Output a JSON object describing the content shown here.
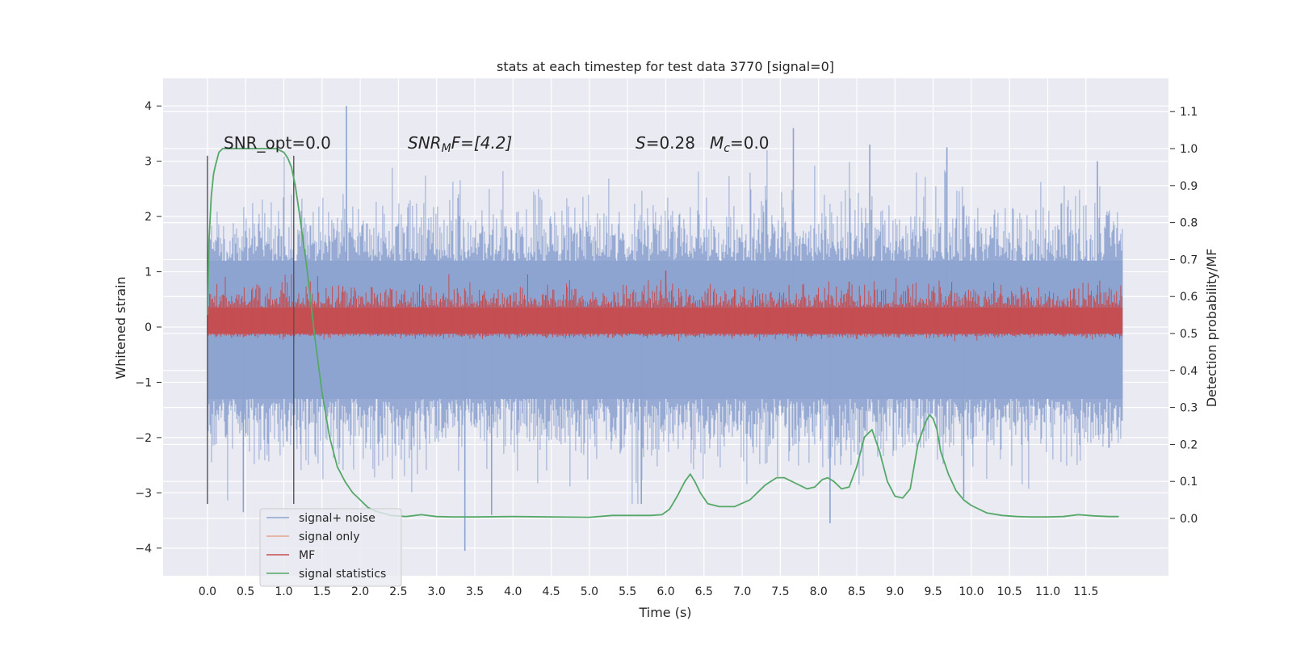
{
  "chart_data": {
    "type": "line",
    "title": "stats at each timestep for test data 3770 [signal=0]",
    "xlabel": "Time (s)",
    "ylabel": "Whitened strain",
    "y2label": "Detection probability/MF",
    "xlim": [
      -0.58,
      12.58
    ],
    "ylim": [
      -4.5,
      4.5
    ],
    "y2lim": [
      -0.155,
      1.19
    ],
    "grid": true,
    "legend_position": "lower-left",
    "x_ticks": [
      "0.0",
      "0.5",
      "1.0",
      "1.5",
      "2.0",
      "2.5",
      "3.0",
      "3.5",
      "4.0",
      "4.5",
      "5.0",
      "5.5",
      "6.0",
      "6.5",
      "7.0",
      "7.5",
      "8.0",
      "8.5",
      "9.0",
      "9.5",
      "10.0",
      "10.5",
      "11.0",
      "11.5"
    ],
    "y_ticks": [
      "4",
      "3",
      "2",
      "1",
      "0",
      "−1",
      "−2",
      "−3",
      "−4"
    ],
    "y2_ticks": [
      "1.1",
      "1.0",
      "0.9",
      "0.8",
      "0.7",
      "0.6",
      "0.5",
      "0.4",
      "0.3",
      "0.2",
      "0.1",
      "0.0"
    ],
    "annotations": {
      "snr_opt": "SNR_opt=0.0",
      "snr_mf": "SNR<sub>M</sub>F=[4.2]",
      "snr_mf_base": "SNR",
      "snr_mf_sub": "M",
      "snr_mf_rest": "F=[4.2]",
      "s_label": "S",
      "s_value": "=0.28",
      "mc_label": "M",
      "mc_sub": "c",
      "mc_value": "=0.0"
    },
    "vertical_lines_x": [
      0.0,
      1.13
    ],
    "vertical_lines_y_range": [
      -3.2,
      3.1
    ],
    "series": [
      {
        "name": "signal+ noise",
        "color": "#8da3cf",
        "description_level": "noise band",
        "core_band": [
          -1.3,
          1.2
        ],
        "peaks": [
          {
            "x": 1.82,
            "y": 4.0
          },
          {
            "x": 7.67,
            "y": 3.6
          },
          {
            "x": 3.37,
            "y": -4.05
          },
          {
            "x": 0.47,
            "y": -3.35
          },
          {
            "x": 3.72,
            "y": -3.4
          },
          {
            "x": 8.15,
            "y": -3.55
          },
          {
            "x": 5.68,
            "y": -3.2
          },
          {
            "x": 9.9,
            "y": -3.1
          },
          {
            "x": 8.67,
            "y": 3.3
          },
          {
            "x": 9.68,
            "y": 3.25
          },
          {
            "x": 11.65,
            "y": 3.0
          }
        ],
        "x_range": [
          0.0,
          11.98
        ]
      },
      {
        "name": "signal only",
        "color": "#e8a487",
        "x_range": [
          0.0,
          11.98
        ],
        "values_constant": 0.0
      },
      {
        "name": "MF",
        "color": "#c44e52",
        "axis": "y2",
        "x_range": [
          0.0,
          11.98
        ],
        "band": [
          0.5,
          0.57
        ],
        "peak_typical": 0.62,
        "peaks": [
          {
            "x": 6.0,
            "y": 0.67
          },
          {
            "x": 8.4,
            "y": 0.64
          }
        ]
      },
      {
        "name": "signal statistics",
        "color": "#55a868",
        "axis": "y2",
        "x": [
          0.0,
          0.02,
          0.05,
          0.08,
          0.1,
          0.15,
          0.2,
          0.3,
          0.4,
          0.5,
          0.6,
          0.7,
          0.8,
          0.9,
          0.95,
          1.0,
          1.05,
          1.1,
          1.15,
          1.2,
          1.3,
          1.4,
          1.5,
          1.6,
          1.7,
          1.8,
          1.9,
          2.0,
          2.1,
          2.2,
          2.4,
          2.6,
          2.8,
          3.0,
          3.2,
          3.5,
          4.0,
          4.5,
          5.0,
          5.3,
          5.5,
          5.8,
          5.95,
          6.05,
          6.15,
          6.25,
          6.32,
          6.38,
          6.45,
          6.55,
          6.7,
          6.9,
          7.1,
          7.3,
          7.45,
          7.55,
          7.7,
          7.85,
          7.95,
          8.05,
          8.12,
          8.2,
          8.3,
          8.4,
          8.5,
          8.6,
          8.7,
          8.8,
          8.9,
          9.0,
          9.1,
          9.2,
          9.3,
          9.4,
          9.45,
          9.5,
          9.55,
          9.6,
          9.7,
          9.8,
          9.9,
          10.0,
          10.2,
          10.4,
          10.6,
          10.8,
          11.0,
          11.2,
          11.4,
          11.6,
          11.8,
          11.93
        ],
        "y": [
          0.55,
          0.75,
          0.87,
          0.93,
          0.95,
          0.99,
          1.0,
          1.0,
          1.0,
          1.0,
          1.0,
          1.0,
          1.0,
          1.0,
          0.995,
          0.99,
          0.975,
          0.95,
          0.9,
          0.83,
          0.68,
          0.5,
          0.34,
          0.22,
          0.14,
          0.1,
          0.07,
          0.05,
          0.03,
          0.02,
          0.008,
          0.005,
          0.01,
          0.005,
          0.004,
          0.004,
          0.005,
          0.004,
          0.003,
          0.008,
          0.008,
          0.008,
          0.01,
          0.025,
          0.06,
          0.1,
          0.12,
          0.1,
          0.07,
          0.04,
          0.032,
          0.032,
          0.05,
          0.09,
          0.11,
          0.11,
          0.095,
          0.08,
          0.085,
          0.105,
          0.11,
          0.1,
          0.08,
          0.085,
          0.14,
          0.22,
          0.24,
          0.18,
          0.1,
          0.06,
          0.055,
          0.08,
          0.2,
          0.26,
          0.28,
          0.27,
          0.24,
          0.18,
          0.12,
          0.075,
          0.05,
          0.035,
          0.015,
          0.008,
          0.005,
          0.004,
          0.004,
          0.005,
          0.01,
          0.007,
          0.005,
          0.005
        ]
      }
    ],
    "legend": [
      "signal+ noise",
      "signal only",
      "MF",
      "signal statistics"
    ]
  }
}
